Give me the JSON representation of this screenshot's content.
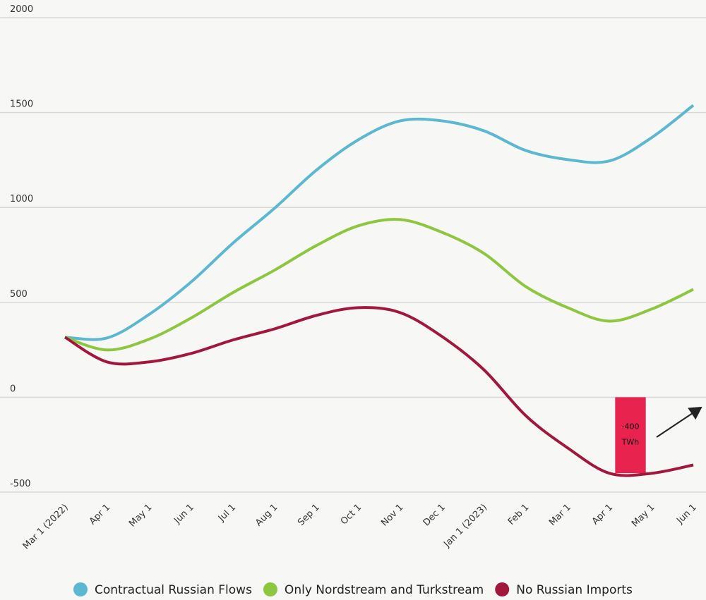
{
  "chart_data": {
    "type": "line",
    "categories": [
      "Mar 1 (2022)",
      "Apr 1",
      "May 1",
      "Jun 1",
      "Jul 1",
      "Aug 1",
      "Sep 1",
      "Oct 1",
      "Nov 1",
      "Dec 1",
      "Jan 1 (2023)",
      "Feb 1",
      "Mar 1",
      "Apr 1",
      "May 1",
      "Jun 1"
    ],
    "series": [
      {
        "name": "Contractual Russian Flows",
        "color": "#5bb8d0",
        "values": [
          316,
          312,
          435,
          605,
          810,
          995,
          1196,
          1356,
          1456,
          1456,
          1404,
          1300,
          1252,
          1245,
          1367,
          1538
        ]
      },
      {
        "name": "Only Nordstream and Turkstream",
        "color": "#8dc63f",
        "values": [
          316,
          249,
          305,
          416,
          550,
          669,
          799,
          903,
          936,
          869,
          758,
          583,
          472,
          401,
          464,
          568
        ]
      },
      {
        "name": "No Russian Imports",
        "color": "#a3173d",
        "values": [
          316,
          186,
          186,
          230,
          301,
          360,
          431,
          472,
          446,
          320,
          145,
          -97,
          -267,
          -401,
          -401,
          -357
        ]
      }
    ],
    "ylim": [
      -500,
      2000
    ],
    "yticks": [
      -500,
      0,
      500,
      1000,
      1500,
      2000
    ],
    "grid": true,
    "legend": "bottom",
    "annotation": {
      "value": -400,
      "lines": [
        "-400",
        "TWh"
      ],
      "color": "#e8234e"
    }
  }
}
